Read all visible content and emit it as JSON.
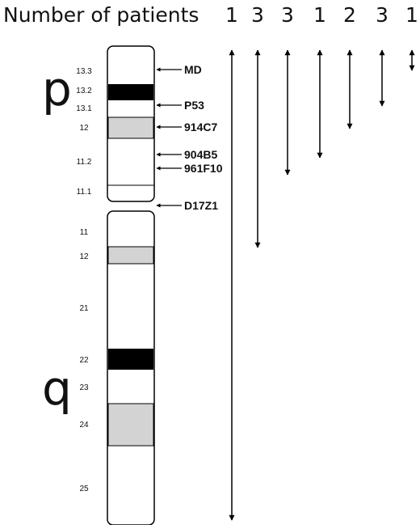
{
  "header": {
    "label": "Number of patients"
  },
  "arm_labels": {
    "p": "p",
    "q": "q"
  },
  "band_labels": {
    "p": [
      "13.3",
      "13.2",
      "13.1",
      "12",
      "11.2",
      "11.1"
    ],
    "q": [
      "11",
      "12",
      "21",
      "22",
      "23",
      "24",
      "25"
    ]
  },
  "markers": [
    "MD",
    "P53",
    "914C7",
    "904B5",
    "961F10",
    "D17Z1"
  ],
  "patient_counts": [
    "1",
    "3",
    "3",
    "1",
    "2",
    "3",
    "1"
  ],
  "colors": {
    "dark_band": "#000000",
    "gray_band": "#d3d3d3",
    "line": "#000000"
  }
}
